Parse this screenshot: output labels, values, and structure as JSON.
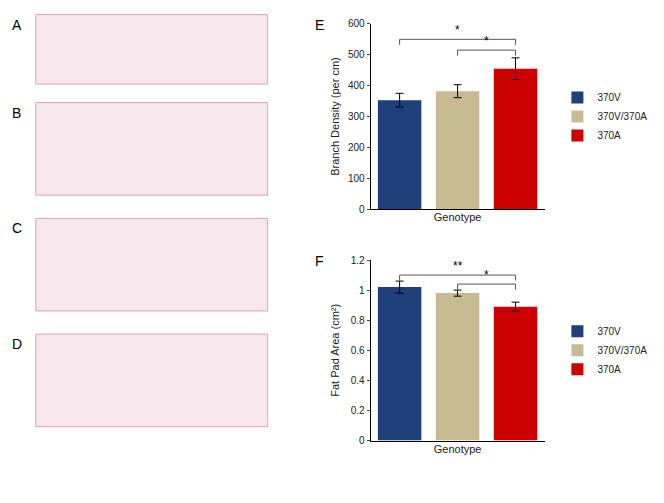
{
  "panel_labels": [
    "A",
    "B",
    "C",
    "D"
  ],
  "chart_data": [
    {
      "panel": "E",
      "type": "bar",
      "y_label": "Branch Density (per cm)",
      "x_label": "Genotype",
      "categories": [
        "370V",
        "370V/370A",
        "370A"
      ],
      "values": [
        353,
        382,
        455
      ],
      "errors": [
        22,
        21,
        35
      ],
      "colors": [
        "#1f3f7a",
        "#c8bb93",
        "#cc0000"
      ],
      "ylim": [
        0,
        600
      ],
      "yticks": [
        0,
        100,
        200,
        300,
        400,
        500,
        600
      ],
      "grid": false,
      "legend": "right",
      "tick_labels": "y",
      "significance": [
        {
          "from": "370V",
          "to": "370A",
          "y": 550,
          "text": "*"
        },
        {
          "from": "370V/370A",
          "to": "370A",
          "y": 515,
          "text": "*"
        }
      ]
    },
    {
      "panel": "F",
      "type": "bar",
      "y_label": "Fat Pad Area (cm²)",
      "x_label": "Genotype",
      "categories": [
        "370V",
        "370V/370A",
        "370A"
      ],
      "values": [
        1.02,
        0.98,
        0.89
      ],
      "errors": [
        0.04,
        0.02,
        0.03
      ],
      "colors": [
        "#1f3f7a",
        "#c8bb93",
        "#cc0000"
      ],
      "ylim": [
        0,
        1.2
      ],
      "yticks": [
        0,
        0.2,
        0.4,
        0.6,
        0.8,
        1,
        1.2
      ],
      "grid": false,
      "legend": "right",
      "tick_labels": "y",
      "significance": [
        {
          "from": "370V",
          "to": "370A",
          "y": 1.1,
          "text": "**"
        },
        {
          "from": "370V/370A",
          "to": "370A",
          "y": 1.04,
          "text": "*"
        }
      ]
    }
  ]
}
